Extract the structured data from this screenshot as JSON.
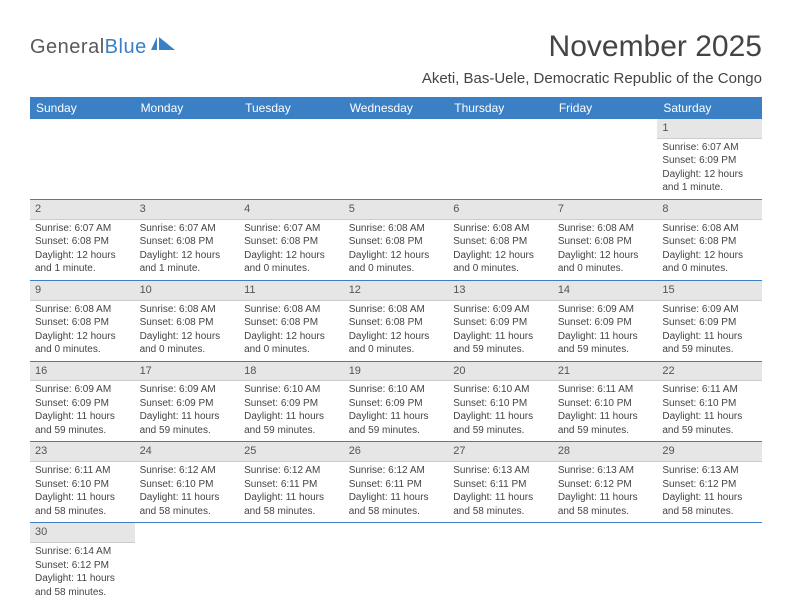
{
  "logo": {
    "text1": "General",
    "text2": "Blue"
  },
  "title": "November 2025",
  "location": "Aketi, Bas-Uele, Democratic Republic of the Congo",
  "colors": {
    "header_bg": "#3b7fc4",
    "header_fg": "#ffffff",
    "daynum_bg": "#e6e6e6",
    "rule": "#3b7fc4",
    "body_text": "#444444"
  },
  "weekdays": [
    "Sunday",
    "Monday",
    "Tuesday",
    "Wednesday",
    "Thursday",
    "Friday",
    "Saturday"
  ],
  "weeks": [
    [
      null,
      null,
      null,
      null,
      null,
      null,
      {
        "n": "1",
        "sr": "Sunrise: 6:07 AM",
        "ss": "Sunset: 6:09 PM",
        "dl": "Daylight: 12 hours and 1 minute."
      }
    ],
    [
      {
        "n": "2",
        "sr": "Sunrise: 6:07 AM",
        "ss": "Sunset: 6:08 PM",
        "dl": "Daylight: 12 hours and 1 minute."
      },
      {
        "n": "3",
        "sr": "Sunrise: 6:07 AM",
        "ss": "Sunset: 6:08 PM",
        "dl": "Daylight: 12 hours and 1 minute."
      },
      {
        "n": "4",
        "sr": "Sunrise: 6:07 AM",
        "ss": "Sunset: 6:08 PM",
        "dl": "Daylight: 12 hours and 0 minutes."
      },
      {
        "n": "5",
        "sr": "Sunrise: 6:08 AM",
        "ss": "Sunset: 6:08 PM",
        "dl": "Daylight: 12 hours and 0 minutes."
      },
      {
        "n": "6",
        "sr": "Sunrise: 6:08 AM",
        "ss": "Sunset: 6:08 PM",
        "dl": "Daylight: 12 hours and 0 minutes."
      },
      {
        "n": "7",
        "sr": "Sunrise: 6:08 AM",
        "ss": "Sunset: 6:08 PM",
        "dl": "Daylight: 12 hours and 0 minutes."
      },
      {
        "n": "8",
        "sr": "Sunrise: 6:08 AM",
        "ss": "Sunset: 6:08 PM",
        "dl": "Daylight: 12 hours and 0 minutes."
      }
    ],
    [
      {
        "n": "9",
        "sr": "Sunrise: 6:08 AM",
        "ss": "Sunset: 6:08 PM",
        "dl": "Daylight: 12 hours and 0 minutes."
      },
      {
        "n": "10",
        "sr": "Sunrise: 6:08 AM",
        "ss": "Sunset: 6:08 PM",
        "dl": "Daylight: 12 hours and 0 minutes."
      },
      {
        "n": "11",
        "sr": "Sunrise: 6:08 AM",
        "ss": "Sunset: 6:08 PM",
        "dl": "Daylight: 12 hours and 0 minutes."
      },
      {
        "n": "12",
        "sr": "Sunrise: 6:08 AM",
        "ss": "Sunset: 6:08 PM",
        "dl": "Daylight: 12 hours and 0 minutes."
      },
      {
        "n": "13",
        "sr": "Sunrise: 6:09 AM",
        "ss": "Sunset: 6:09 PM",
        "dl": "Daylight: 11 hours and 59 minutes."
      },
      {
        "n": "14",
        "sr": "Sunrise: 6:09 AM",
        "ss": "Sunset: 6:09 PM",
        "dl": "Daylight: 11 hours and 59 minutes."
      },
      {
        "n": "15",
        "sr": "Sunrise: 6:09 AM",
        "ss": "Sunset: 6:09 PM",
        "dl": "Daylight: 11 hours and 59 minutes."
      }
    ],
    [
      {
        "n": "16",
        "sr": "Sunrise: 6:09 AM",
        "ss": "Sunset: 6:09 PM",
        "dl": "Daylight: 11 hours and 59 minutes."
      },
      {
        "n": "17",
        "sr": "Sunrise: 6:09 AM",
        "ss": "Sunset: 6:09 PM",
        "dl": "Daylight: 11 hours and 59 minutes."
      },
      {
        "n": "18",
        "sr": "Sunrise: 6:10 AM",
        "ss": "Sunset: 6:09 PM",
        "dl": "Daylight: 11 hours and 59 minutes."
      },
      {
        "n": "19",
        "sr": "Sunrise: 6:10 AM",
        "ss": "Sunset: 6:09 PM",
        "dl": "Daylight: 11 hours and 59 minutes."
      },
      {
        "n": "20",
        "sr": "Sunrise: 6:10 AM",
        "ss": "Sunset: 6:10 PM",
        "dl": "Daylight: 11 hours and 59 minutes."
      },
      {
        "n": "21",
        "sr": "Sunrise: 6:11 AM",
        "ss": "Sunset: 6:10 PM",
        "dl": "Daylight: 11 hours and 59 minutes."
      },
      {
        "n": "22",
        "sr": "Sunrise: 6:11 AM",
        "ss": "Sunset: 6:10 PM",
        "dl": "Daylight: 11 hours and 59 minutes."
      }
    ],
    [
      {
        "n": "23",
        "sr": "Sunrise: 6:11 AM",
        "ss": "Sunset: 6:10 PM",
        "dl": "Daylight: 11 hours and 58 minutes."
      },
      {
        "n": "24",
        "sr": "Sunrise: 6:12 AM",
        "ss": "Sunset: 6:10 PM",
        "dl": "Daylight: 11 hours and 58 minutes."
      },
      {
        "n": "25",
        "sr": "Sunrise: 6:12 AM",
        "ss": "Sunset: 6:11 PM",
        "dl": "Daylight: 11 hours and 58 minutes."
      },
      {
        "n": "26",
        "sr": "Sunrise: 6:12 AM",
        "ss": "Sunset: 6:11 PM",
        "dl": "Daylight: 11 hours and 58 minutes."
      },
      {
        "n": "27",
        "sr": "Sunrise: 6:13 AM",
        "ss": "Sunset: 6:11 PM",
        "dl": "Daylight: 11 hours and 58 minutes."
      },
      {
        "n": "28",
        "sr": "Sunrise: 6:13 AM",
        "ss": "Sunset: 6:12 PM",
        "dl": "Daylight: 11 hours and 58 minutes."
      },
      {
        "n": "29",
        "sr": "Sunrise: 6:13 AM",
        "ss": "Sunset: 6:12 PM",
        "dl": "Daylight: 11 hours and 58 minutes."
      }
    ],
    [
      {
        "n": "30",
        "sr": "Sunrise: 6:14 AM",
        "ss": "Sunset: 6:12 PM",
        "dl": "Daylight: 11 hours and 58 minutes."
      },
      null,
      null,
      null,
      null,
      null,
      null
    ]
  ]
}
